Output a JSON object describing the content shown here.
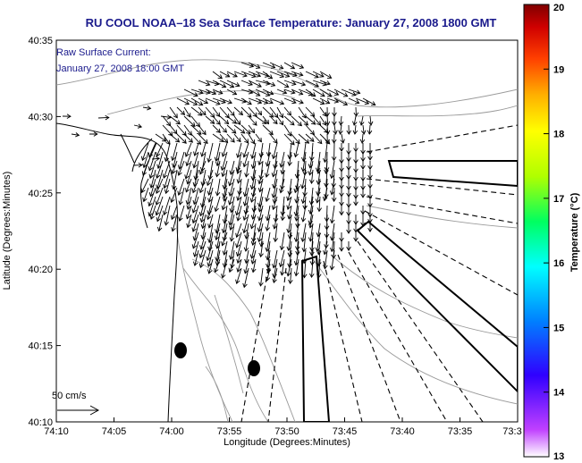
{
  "chart_data": {
    "type": "map",
    "title": "RU COOL  NOAA–18  Sea Surface Temperature:  January 27, 2008 1800 GMT",
    "annotation": {
      "line1": "Raw Surface Current:",
      "line2": "January 27, 2008 18:00 GMT"
    },
    "xlabel": "Longitude (Degrees:Minutes)",
    "ylabel": "Latitude (Degrees:Minutes)",
    "x_ticks": [
      "74:10",
      "74:05",
      "74:00",
      "73:55",
      "73:50",
      "73:45",
      "73:40",
      "73:35",
      "73:3"
    ],
    "y_ticks": [
      "40:35",
      "40:30",
      "40:25",
      "40:20",
      "40:15",
      "40:10"
    ],
    "scale_label": "50 cm/s",
    "colorbar": {
      "label": "Temperature (°C)",
      "min": 13,
      "max": 20,
      "ticks": [
        "20",
        "19",
        "18",
        "17",
        "16",
        "15",
        "14",
        "13"
      ],
      "colors": [
        "#ffffff",
        "#c040ff",
        "#3000ff",
        "#0080ff",
        "#00ffff",
        "#00ff60",
        "#b0ff00",
        "#ffff00",
        "#ffb000",
        "#ff4000",
        "#d00000",
        "#800000"
      ]
    }
  }
}
